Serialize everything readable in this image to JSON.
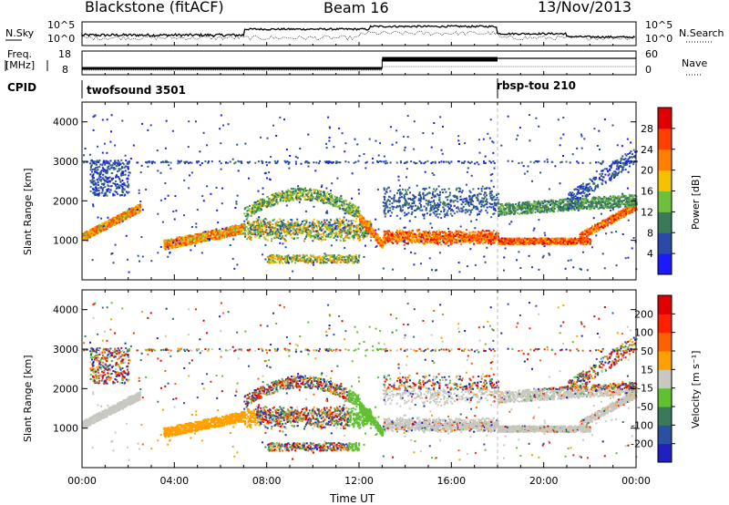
{
  "header": {
    "station": "Blackstone (fitACF)",
    "beam": "Beam 16",
    "date": "13/Nov/2013"
  },
  "panels": {
    "nsky": {
      "left_label": "N.Sky",
      "right_label": "N.Search",
      "tick_top": "10^5",
      "tick_bottom": "10^0"
    },
    "freq": {
      "label_top": "Freq.",
      "label_bottom": "[MHz]",
      "tick_top": "18",
      "tick_bottom": "8",
      "right_label": "Nave",
      "right_tick_top": "60",
      "right_tick_bottom": "0"
    },
    "cpid": {
      "label": "CPID",
      "segments": [
        "twofsound 3501",
        "rbsp-tou 210"
      ]
    }
  },
  "chart_data": [
    {
      "type": "heatmap",
      "name": "power",
      "ylabel": "Slant Range [km]",
      "yticks": [
        "1000",
        "2000",
        "3000",
        "4000"
      ],
      "ylim": [
        0,
        4500
      ],
      "xlim": [
        0,
        24
      ],
      "colorbar": {
        "label": "Power [dB]",
        "ticks": [
          "4",
          "8",
          "12",
          "16",
          "20",
          "24",
          "28"
        ],
        "colors": [
          "#1a1aff",
          "#2a4aa8",
          "#3a7a5a",
          "#6fbf3f",
          "#f5c000",
          "#ff8000",
          "#ff4000",
          "#e00000"
        ]
      }
    },
    {
      "type": "heatmap",
      "name": "velocity",
      "ylabel": "Slant Range [km]",
      "yticks": [
        "1000",
        "2000",
        "3000",
        "4000"
      ],
      "ylim": [
        0,
        4500
      ],
      "xlim": [
        0,
        24
      ],
      "xlabel": "Time UT",
      "xticks": [
        "00:00",
        "04:00",
        "08:00",
        "12:00",
        "16:00",
        "20:00",
        "00:00"
      ],
      "colorbar": {
        "label": "Velocity [m s⁻¹]",
        "ticks": [
          "200",
          "100",
          "50",
          "15",
          "-15",
          "-50",
          "-100",
          "-200"
        ],
        "colors": [
          "#2020c0",
          "#2a50a0",
          "#3a7a5a",
          "#60c030",
          "#c8c8c0",
          "#ffa000",
          "#ff6000",
          "#ff2000",
          "#e00000"
        ]
      }
    }
  ]
}
